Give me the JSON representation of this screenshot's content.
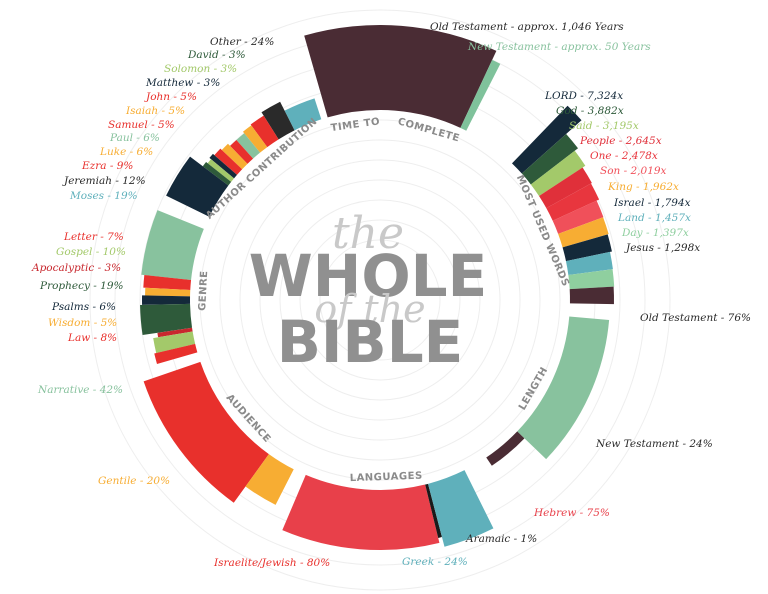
{
  "title": {
    "line1": "the",
    "line2": "WHOLE",
    "line3": "of the",
    "line4": "BIBLE",
    "word_color": "#909090",
    "script_color": "#c9c9c9"
  },
  "chart_data": [
    {
      "type": "bar",
      "name": "TIME TO COMPLETE",
      "categories": [
        "Old Testament - approx. 1,046 Years",
        "New Testament - approx. 50 Years"
      ],
      "values": [
        1046,
        50
      ],
      "colors": [
        "#4a2c34",
        "#7fc29b"
      ]
    },
    {
      "type": "bar",
      "name": "MOST USED WORDS",
      "categories": [
        "LORD - 7,324x",
        "God - 3,882x",
        "Said - 3,195x",
        "People - 2,645x",
        "One - 2,478x",
        "Son - 2,019x",
        "King - 1,962x",
        "Israel - 1,794x",
        "Land - 1,457x",
        "Day - 1,397x",
        "Jesus - 1,298x"
      ],
      "values": [
        7324,
        3882,
        3195,
        2645,
        2478,
        2019,
        1962,
        1794,
        1457,
        1397,
        1298
      ],
      "colors": [
        "#14293a",
        "#2e5a3a",
        "#a3c96a",
        "#e0303a",
        "#e8363e",
        "#f0505a",
        "#f7ad33",
        "#14293a",
        "#5fb0bb",
        "#8fcf9f",
        "#4a2c34"
      ]
    },
    {
      "type": "bar",
      "name": "LENGTH",
      "categories": [
        "Old Testament - 76%",
        "New Testament - 24%"
      ],
      "values": [
        76,
        24
      ],
      "colors": [
        "#88c29e",
        "#4a2c34"
      ]
    },
    {
      "type": "bar",
      "name": "LANGUAGES",
      "categories": [
        "Hebrew - 75%",
        "Aramaic - 1%",
        "Greek - 24%"
      ],
      "values": [
        75,
        1,
        24
      ],
      "colors": [
        "#e8404a",
        "#1a1a1a",
        "#5fb0bb"
      ]
    },
    {
      "type": "bar",
      "name": "AUDIENCE",
      "categories": [
        "Israelite/Jewish - 80%",
        "Gentile - 20%"
      ],
      "values": [
        80,
        20
      ],
      "colors": [
        "#e8302c",
        "#f7ad33"
      ]
    },
    {
      "type": "bar",
      "name": "GENRE",
      "categories": [
        "Narrative - 42%",
        "Law - 8%",
        "Wisdom - 5%",
        "Psalms - 6%",
        "Prophecy - 19%",
        "Apocalyptic - 3%",
        "Gospel - 10%",
        "Letter - 7%"
      ],
      "values": [
        42,
        8,
        5,
        6,
        19,
        3,
        10,
        7
      ],
      "colors": [
        "#88c29e",
        "#e8302c",
        "#f7ad33",
        "#14293a",
        "#2e5a3a",
        "#c8282e",
        "#a3c96a",
        "#e8302c"
      ]
    },
    {
      "type": "bar",
      "name": "AUTHOR CONTRIBUTION",
      "categories": [
        "Moses - 19%",
        "Jeremiah - 12%",
        "Ezra - 9%",
        "Luke - 6%",
        "Paul - 6%",
        "Samuel - 5%",
        "Isaiah - 5%",
        "John - 5%",
        "Matthew - 3%",
        "Solomon - 3%",
        "David - 3%",
        "Other - 24%"
      ],
      "values": [
        19,
        12,
        9,
        6,
        6,
        5,
        5,
        5,
        3,
        3,
        3,
        24
      ],
      "colors": [
        "#5fb0bb",
        "#2a2a2a",
        "#e8302c",
        "#f7ad33",
        "#88c29e",
        "#e8302c",
        "#f7ad33",
        "#e8302c",
        "#14293a",
        "#a3c96a",
        "#2e5a3a",
        "#14293a"
      ]
    }
  ]
}
